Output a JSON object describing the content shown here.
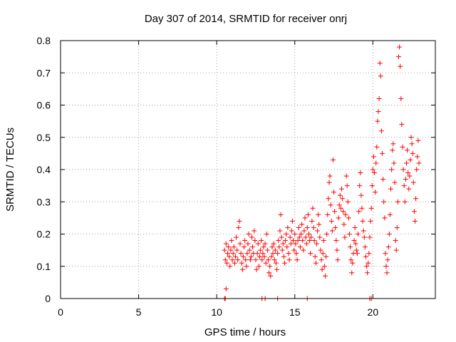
{
  "chart_data": {
    "type": "scatter",
    "title": "Day 307 of 2014, SRMTID for receiver onrj",
    "xlabel": "GPS time / hours",
    "ylabel": "SRMTID / TECUs",
    "xlim": [
      0,
      24
    ],
    "ylim": [
      0,
      0.8
    ],
    "xticks": [
      0,
      5,
      10,
      15,
      20
    ],
    "yticks": [
      0,
      0.1,
      0.2,
      0.3,
      0.4,
      0.5,
      0.6,
      0.7,
      0.8
    ],
    "xtick_labels": [
      "0",
      "5",
      "10",
      "15",
      "20"
    ],
    "ytick_labels": [
      "0",
      "0.1",
      "0.2",
      "0.3",
      "0.4",
      "0.5",
      "0.6",
      "0.7",
      "0.8"
    ],
    "grid": true,
    "marker": "+",
    "color": "#ff0000",
    "series": [
      {
        "name": "SRMTID",
        "points": [
          [
            10.5,
            0.0
          ],
          [
            10.55,
            0.0
          ],
          [
            12.9,
            0.0
          ],
          [
            13.1,
            0.0
          ],
          [
            13.9,
            0.0
          ],
          [
            15.8,
            0.0
          ],
          [
            19.8,
            0.0
          ],
          [
            19.9,
            0.0
          ],
          [
            10.6,
            0.03
          ],
          [
            10.5,
            0.15
          ],
          [
            10.55,
            0.12
          ],
          [
            10.6,
            0.17
          ],
          [
            10.65,
            0.11
          ],
          [
            10.7,
            0.14
          ],
          [
            10.75,
            0.16
          ],
          [
            10.8,
            0.13
          ],
          [
            10.85,
            0.1
          ],
          [
            10.9,
            0.15
          ],
          [
            10.95,
            0.18
          ],
          [
            11.0,
            0.12
          ],
          [
            11.05,
            0.14
          ],
          [
            11.1,
            0.16
          ],
          [
            11.15,
            0.11
          ],
          [
            11.2,
            0.13
          ],
          [
            11.25,
            0.19
          ],
          [
            11.3,
            0.15
          ],
          [
            11.35,
            0.12
          ],
          [
            11.4,
            0.22
          ],
          [
            11.45,
            0.24
          ],
          [
            11.5,
            0.17
          ],
          [
            11.55,
            0.14
          ],
          [
            11.6,
            0.11
          ],
          [
            11.65,
            0.09
          ],
          [
            11.7,
            0.13
          ],
          [
            11.75,
            0.16
          ],
          [
            11.8,
            0.18
          ],
          [
            11.85,
            0.12
          ],
          [
            11.9,
            0.1
          ],
          [
            11.95,
            0.14
          ],
          [
            12.0,
            0.17
          ],
          [
            12.05,
            0.2
          ],
          [
            12.1,
            0.15
          ],
          [
            12.15,
            0.12
          ],
          [
            12.2,
            0.13
          ],
          [
            12.25,
            0.19
          ],
          [
            12.3,
            0.16
          ],
          [
            12.35,
            0.14
          ],
          [
            12.4,
            0.21
          ],
          [
            12.45,
            0.18
          ],
          [
            12.5,
            0.12
          ],
          [
            12.55,
            0.09
          ],
          [
            12.6,
            0.14
          ],
          [
            12.65,
            0.17
          ],
          [
            12.7,
            0.1
          ],
          [
            12.75,
            0.13
          ],
          [
            12.8,
            0.15
          ],
          [
            12.85,
            0.18
          ],
          [
            12.9,
            0.12
          ],
          [
            12.95,
            0.14
          ],
          [
            13.0,
            0.16
          ],
          [
            13.05,
            0.13
          ],
          [
            13.1,
            0.17
          ],
          [
            13.15,
            0.11
          ],
          [
            13.2,
            0.2
          ],
          [
            13.25,
            0.15
          ],
          [
            13.3,
            0.12
          ],
          [
            13.35,
            0.08
          ],
          [
            13.4,
            0.1
          ],
          [
            13.45,
            0.07
          ],
          [
            13.5,
            0.13
          ],
          [
            13.55,
            0.16
          ],
          [
            13.6,
            0.14
          ],
          [
            13.65,
            0.17
          ],
          [
            13.7,
            0.12
          ],
          [
            13.75,
            0.15
          ],
          [
            13.8,
            0.11
          ],
          [
            13.85,
            0.09
          ],
          [
            13.9,
            0.14
          ],
          [
            13.95,
            0.18
          ],
          [
            14.0,
            0.16
          ],
          [
            14.05,
            0.21
          ],
          [
            14.1,
            0.26
          ],
          [
            14.15,
            0.19
          ],
          [
            14.2,
            0.15
          ],
          [
            14.25,
            0.17
          ],
          [
            14.3,
            0.13
          ],
          [
            14.35,
            0.11
          ],
          [
            14.4,
            0.18
          ],
          [
            14.45,
            0.2
          ],
          [
            14.5,
            0.16
          ],
          [
            14.55,
            0.22
          ],
          [
            14.6,
            0.14
          ],
          [
            14.65,
            0.12
          ],
          [
            14.7,
            0.19
          ],
          [
            14.75,
            0.17
          ],
          [
            14.8,
            0.21
          ],
          [
            14.85,
            0.24
          ],
          [
            14.9,
            0.18
          ],
          [
            14.95,
            0.15
          ],
          [
            15.0,
            0.2
          ],
          [
            15.05,
            0.17
          ],
          [
            15.1,
            0.14
          ],
          [
            15.15,
            0.12
          ],
          [
            15.2,
            0.18
          ],
          [
            15.25,
            0.22
          ],
          [
            15.3,
            0.19
          ],
          [
            15.35,
            0.16
          ],
          [
            15.4,
            0.2
          ],
          [
            15.45,
            0.23
          ],
          [
            15.5,
            0.18
          ],
          [
            15.55,
            0.15
          ],
          [
            15.6,
            0.21
          ],
          [
            15.65,
            0.25
          ],
          [
            15.7,
            0.19
          ],
          [
            15.75,
            0.17
          ],
          [
            15.8,
            0.22
          ],
          [
            15.85,
            0.26
          ],
          [
            15.9,
            0.2
          ],
          [
            15.95,
            0.18
          ],
          [
            16.0,
            0.14
          ],
          [
            16.05,
            0.19
          ],
          [
            16.1,
            0.24
          ],
          [
            16.15,
            0.28
          ],
          [
            16.2,
            0.22
          ],
          [
            16.25,
            0.18
          ],
          [
            16.3,
            0.13
          ],
          [
            16.35,
            0.11
          ],
          [
            16.4,
            0.17
          ],
          [
            16.45,
            0.21
          ],
          [
            16.5,
            0.26
          ],
          [
            16.55,
            0.23
          ],
          [
            16.6,
            0.19
          ],
          [
            16.65,
            0.15
          ],
          [
            16.7,
            0.12
          ],
          [
            16.75,
            0.09
          ],
          [
            16.8,
            0.14
          ],
          [
            16.85,
            0.18
          ],
          [
            16.9,
            0.1
          ],
          [
            16.95,
            0.07
          ],
          [
            17.0,
            0.13
          ],
          [
            17.05,
            0.2
          ],
          [
            17.1,
            0.26
          ],
          [
            17.15,
            0.31
          ],
          [
            17.2,
            0.36
          ],
          [
            17.25,
            0.38
          ],
          [
            17.3,
            0.29
          ],
          [
            17.35,
            0.24
          ],
          [
            17.4,
            0.21
          ],
          [
            17.45,
            0.43
          ],
          [
            17.5,
            0.33
          ],
          [
            17.55,
            0.27
          ],
          [
            17.6,
            0.22
          ],
          [
            17.65,
            0.18
          ],
          [
            17.7,
            0.15
          ],
          [
            17.75,
            0.12
          ],
          [
            17.8,
            0.25
          ],
          [
            17.85,
            0.29
          ],
          [
            17.9,
            0.32
          ],
          [
            17.95,
            0.28
          ],
          [
            18.0,
            0.34
          ],
          [
            18.05,
            0.31
          ],
          [
            18.1,
            0.27
          ],
          [
            18.15,
            0.23
          ],
          [
            18.2,
            0.19
          ],
          [
            18.25,
            0.26
          ],
          [
            18.3,
            0.38
          ],
          [
            18.35,
            0.35
          ],
          [
            18.4,
            0.3
          ],
          [
            18.45,
            0.25
          ],
          [
            18.5,
            0.2
          ],
          [
            18.55,
            0.16
          ],
          [
            18.6,
            0.12
          ],
          [
            18.65,
            0.08
          ],
          [
            18.7,
            0.11
          ],
          [
            18.75,
            0.14
          ],
          [
            18.8,
            0.18
          ],
          [
            18.85,
            0.22
          ],
          [
            18.9,
            0.17
          ],
          [
            18.95,
            0.15
          ],
          [
            19.0,
            0.14
          ],
          [
            19.05,
            0.2
          ],
          [
            19.1,
            0.27
          ],
          [
            19.15,
            0.35
          ],
          [
            19.2,
            0.39
          ],
          [
            19.25,
            0.32
          ],
          [
            19.3,
            0.28
          ],
          [
            19.35,
            0.24
          ],
          [
            19.4,
            0.21
          ],
          [
            19.45,
            0.19
          ],
          [
            19.5,
            0.16
          ],
          [
            19.55,
            0.13
          ],
          [
            19.6,
            0.1
          ],
          [
            19.65,
            0.08
          ],
          [
            19.7,
            0.11
          ],
          [
            19.75,
            0.14
          ],
          [
            19.8,
            0.19
          ],
          [
            19.85,
            0.24
          ],
          [
            19.9,
            0.28
          ],
          [
            19.95,
            0.35
          ],
          [
            20.0,
            0.4
          ],
          [
            20.05,
            0.44
          ],
          [
            20.1,
            0.39
          ],
          [
            20.15,
            0.33
          ],
          [
            20.2,
            0.42
          ],
          [
            20.25,
            0.47
          ],
          [
            20.3,
            0.55
          ],
          [
            20.35,
            0.58
          ],
          [
            20.4,
            0.62
          ],
          [
            20.45,
            0.73
          ],
          [
            20.5,
            0.69
          ],
          [
            20.55,
            0.52
          ],
          [
            20.6,
            0.45
          ],
          [
            20.65,
            0.37
          ],
          [
            20.7,
            0.3
          ],
          [
            20.75,
            0.25
          ],
          [
            20.8,
            0.14
          ],
          [
            20.85,
            0.1
          ],
          [
            20.9,
            0.08
          ],
          [
            20.95,
            0.12
          ],
          [
            21.0,
            0.16
          ],
          [
            21.05,
            0.2
          ],
          [
            21.1,
            0.26
          ],
          [
            21.15,
            0.34
          ],
          [
            21.2,
            0.4
          ],
          [
            21.25,
            0.46
          ],
          [
            21.3,
            0.48
          ],
          [
            21.35,
            0.42
          ],
          [
            21.4,
            0.36
          ],
          [
            21.45,
            0.18
          ],
          [
            21.5,
            0.15
          ],
          [
            21.55,
            0.22
          ],
          [
            21.6,
            0.3
          ],
          [
            21.65,
            0.75
          ],
          [
            21.7,
            0.78
          ],
          [
            21.75,
            0.72
          ],
          [
            21.8,
            0.62
          ],
          [
            21.85,
            0.54
          ],
          [
            21.9,
            0.47
          ],
          [
            21.95,
            0.4
          ],
          [
            22.0,
            0.35
          ],
          [
            22.05,
            0.3
          ],
          [
            22.1,
            0.37
          ],
          [
            22.15,
            0.42
          ],
          [
            22.2,
            0.46
          ],
          [
            22.25,
            0.39
          ],
          [
            22.3,
            0.34
          ],
          [
            22.35,
            0.38
          ],
          [
            22.4,
            0.43
          ],
          [
            22.45,
            0.5
          ],
          [
            22.5,
            0.48
          ],
          [
            22.55,
            0.45
          ],
          [
            22.6,
            0.36
          ],
          [
            22.65,
            0.27
          ],
          [
            22.7,
            0.24
          ],
          [
            22.75,
            0.31
          ],
          [
            22.8,
            0.4
          ],
          [
            22.85,
            0.44
          ],
          [
            22.9,
            0.49
          ],
          [
            22.95,
            0.42
          ]
        ]
      }
    ]
  }
}
